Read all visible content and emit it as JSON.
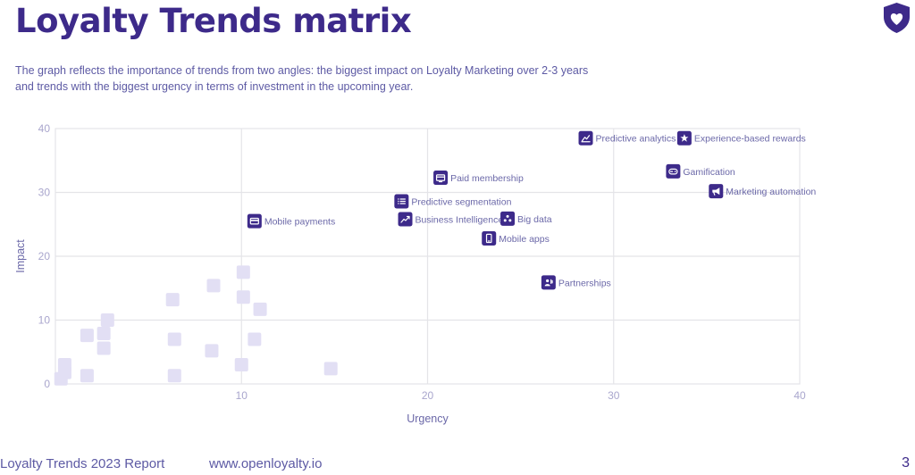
{
  "header": {
    "title": "Loyalty Trends matrix",
    "subtitle": "The graph reflects the importance of trends from two angles: the biggest impact on Loyalty Marketing over 2-3 years and trends with the biggest urgency in terms of investment in the upcoming year.",
    "logo_icon": "shield-heart-icon"
  },
  "footer": {
    "report": "Loyalty Trends 2023 Report",
    "url": "www.openloyalty.io",
    "page": "3"
  },
  "colors": {
    "accent": "#3d2a8a",
    "marker_faded": "#e2dff4",
    "grid": "#e4e4e8",
    "axis_text": "#a9a6cd",
    "label_text": "#6b68a8"
  },
  "chart_data": {
    "type": "scatter",
    "title": "",
    "xlabel": "Urgency",
    "ylabel": "Impact",
    "xlim": [
      0,
      40
    ],
    "ylim": [
      0,
      40
    ],
    "xticks": [
      10,
      20,
      30,
      40
    ],
    "yticks": [
      0,
      10,
      20,
      30,
      40
    ],
    "grid": true,
    "labeled_points": [
      {
        "label": "Predictive analytics",
        "x": 28.5,
        "y": 38.5,
        "icon": "chart-line-icon"
      },
      {
        "label": "Experience-based rewards",
        "x": 33.8,
        "y": 38.5,
        "icon": "star-icon"
      },
      {
        "label": "Gamification",
        "x": 33.2,
        "y": 33.3,
        "icon": "gamepad-icon"
      },
      {
        "label": "Marketing automation",
        "x": 35.5,
        "y": 30.2,
        "icon": "megaphone-icon"
      },
      {
        "label": "Paid membership",
        "x": 20.7,
        "y": 32.3,
        "icon": "card-icon"
      },
      {
        "label": "Predictive segmentation",
        "x": 18.6,
        "y": 28.6,
        "icon": "list-icon"
      },
      {
        "label": "Business Intelligence",
        "x": 18.8,
        "y": 25.8,
        "icon": "trend-icon"
      },
      {
        "label": "Big data",
        "x": 24.3,
        "y": 25.9,
        "icon": "cluster-icon"
      },
      {
        "label": "Mobile apps",
        "x": 23.3,
        "y": 22.8,
        "icon": "phone-icon"
      },
      {
        "label": "Mobile payments",
        "x": 10.7,
        "y": 25.5,
        "icon": "wallet-icon"
      },
      {
        "label": "Partnerships",
        "x": 26.5,
        "y": 15.9,
        "icon": "people-icon"
      }
    ],
    "unlabeled_points": [
      {
        "x": 0.5,
        "y": 3.0
      },
      {
        "x": 0.5,
        "y": 1.8
      },
      {
        "x": 0.3,
        "y": 0.8
      },
      {
        "x": 1.7,
        "y": 7.6
      },
      {
        "x": 1.7,
        "y": 1.3
      },
      {
        "x": 2.6,
        "y": 7.9
      },
      {
        "x": 2.8,
        "y": 10.0
      },
      {
        "x": 2.6,
        "y": 5.6
      },
      {
        "x": 6.3,
        "y": 13.2
      },
      {
        "x": 6.4,
        "y": 7.0
      },
      {
        "x": 6.4,
        "y": 1.3
      },
      {
        "x": 8.5,
        "y": 15.4
      },
      {
        "x": 8.4,
        "y": 5.2
      },
      {
        "x": 10.1,
        "y": 17.5
      },
      {
        "x": 10.1,
        "y": 13.6
      },
      {
        "x": 11.0,
        "y": 11.7
      },
      {
        "x": 10.7,
        "y": 7.0
      },
      {
        "x": 10.0,
        "y": 3.0
      },
      {
        "x": 14.8,
        "y": 2.4
      }
    ]
  }
}
